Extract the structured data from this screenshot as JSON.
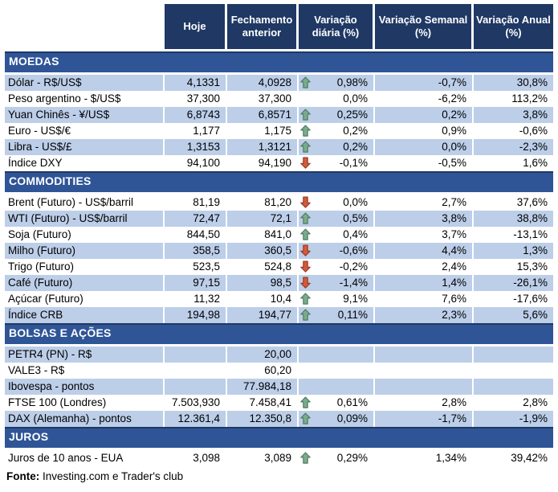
{
  "header": {
    "columns": [
      "Hoje",
      "Fechamento anterior",
      "Variação diária (%)",
      "Variação Semanal (%)",
      "Variação Anual (%)"
    ]
  },
  "sections": [
    {
      "title": "MOEDAS",
      "rows": [
        {
          "label": "Dólar - R$/US$",
          "hoje": "4,1331",
          "fechamento": "4,0928",
          "arrow": "up",
          "var_diaria": "0,98%",
          "var_semanal": "-0,7%",
          "var_anual": "30,8%",
          "shaded": true
        },
        {
          "label": "Peso argentino - $/US$",
          "hoje": "37,300",
          "fechamento": "37,300",
          "arrow": null,
          "var_diaria": "0,0%",
          "var_semanal": "-6,2%",
          "var_anual": "113,2%",
          "shaded": false
        },
        {
          "label": "Yuan Chinês - ¥/US$",
          "hoje": "6,8743",
          "fechamento": "6,8571",
          "arrow": "up",
          "var_diaria": "0,25%",
          "var_semanal": "0,2%",
          "var_anual": "3,8%",
          "shaded": true
        },
        {
          "label": "Euro - US$/€",
          "hoje": "1,177",
          "fechamento": "1,175",
          "arrow": "up",
          "var_diaria": "0,2%",
          "var_semanal": "0,9%",
          "var_anual": "-0,6%",
          "shaded": false
        },
        {
          "label": "Libra - US$/£",
          "hoje": "1,3153",
          "fechamento": "1,3121",
          "arrow": "up",
          "var_diaria": "0,2%",
          "var_semanal": "0,0%",
          "var_anual": "-2,3%",
          "shaded": true
        },
        {
          "label": "Índice DXY",
          "hoje": "94,100",
          "fechamento": "94,190",
          "arrow": "down",
          "var_diaria": "-0,1%",
          "var_semanal": "-0,5%",
          "var_anual": "1,6%",
          "shaded": false
        }
      ]
    },
    {
      "title": "COMMODITIES",
      "rows": [
        {
          "label": "Brent (Futuro) - US$/barril",
          "hoje": "81,19",
          "fechamento": "81,20",
          "arrow": "down",
          "var_diaria": "0,0%",
          "var_semanal": "2,7%",
          "var_anual": "37,6%",
          "shaded": false
        },
        {
          "label": "WTI (Futuro) - US$/barril",
          "hoje": "72,47",
          "fechamento": "72,1",
          "arrow": "up",
          "var_diaria": "0,5%",
          "var_semanal": "3,8%",
          "var_anual": "38,8%",
          "shaded": true
        },
        {
          "label": "Soja (Futuro)",
          "hoje": "844,50",
          "fechamento": "841,0",
          "arrow": "up",
          "var_diaria": "0,4%",
          "var_semanal": "3,7%",
          "var_anual": "-13,1%",
          "shaded": false
        },
        {
          "label": "Milho (Futuro)",
          "hoje": "358,5",
          "fechamento": "360,5",
          "arrow": "down",
          "var_diaria": "-0,6%",
          "var_semanal": "4,4%",
          "var_anual": "1,3%",
          "shaded": true
        },
        {
          "label": "Trigo (Futuro)",
          "hoje": "523,5",
          "fechamento": "524,8",
          "arrow": "down",
          "var_diaria": "-0,2%",
          "var_semanal": "2,4%",
          "var_anual": "15,3%",
          "shaded": false
        },
        {
          "label": "Café (Futuro)",
          "hoje": "97,15",
          "fechamento": "98,5",
          "arrow": "down",
          "var_diaria": "-1,4%",
          "var_semanal": "1,4%",
          "var_anual": "-26,1%",
          "shaded": true
        },
        {
          "label": "Açúcar (Futuro)",
          "hoje": "11,32",
          "fechamento": "10,4",
          "arrow": "up",
          "var_diaria": "9,1%",
          "var_semanal": "7,6%",
          "var_anual": "-17,6%",
          "shaded": false
        },
        {
          "label": "Índice CRB",
          "hoje": "194,98",
          "fechamento": "194,77",
          "arrow": "up",
          "var_diaria": "0,11%",
          "var_semanal": "2,3%",
          "var_anual": "5,6%",
          "shaded": true
        }
      ]
    },
    {
      "title": "BOLSAS E AÇÕES",
      "rows": [
        {
          "label": "PETR4 (PN) - R$",
          "hoje": "",
          "fechamento": "20,00",
          "arrow": null,
          "var_diaria": "",
          "var_semanal": "",
          "var_anual": "",
          "shaded": true
        },
        {
          "label": "VALE3 - R$",
          "hoje": "",
          "fechamento": "60,20",
          "arrow": null,
          "var_diaria": "",
          "var_semanal": "",
          "var_anual": "",
          "shaded": false
        },
        {
          "label": "Ibovespa - pontos",
          "hoje": "",
          "fechamento": "77.984,18",
          "arrow": null,
          "var_diaria": "",
          "var_semanal": "",
          "var_anual": "",
          "shaded": true
        },
        {
          "label": "FTSE 100 (Londres)",
          "hoje": "7.503,930",
          "fechamento": "7.458,41",
          "arrow": "up",
          "var_diaria": "0,61%",
          "var_semanal": "2,8%",
          "var_anual": "2,8%",
          "shaded": false
        },
        {
          "label": "DAX (Alemanha) - pontos",
          "hoje": "12.361,4",
          "fechamento": "12.350,8",
          "arrow": "up",
          "var_diaria": "0,09%",
          "var_semanal": "-1,7%",
          "var_anual": "-1,9%",
          "shaded": true
        }
      ]
    },
    {
      "title": "JUROS",
      "rows": [
        {
          "label": "Juros de 10 anos - EUA",
          "hoje": "3,098",
          "fechamento": "3,089",
          "arrow": "up",
          "var_diaria": "0,29%",
          "var_semanal": "1,34%",
          "var_anual": "39,42%",
          "shaded": false
        }
      ]
    }
  ],
  "footer": {
    "label": "Fonte:",
    "text": " Investing.com e Trader's club"
  },
  "colors": {
    "header_bg": "#1F3864",
    "section_bg": "#2F5597",
    "row_shaded_bg": "#BCCEE8",
    "arrow_up": "#7BAC8D",
    "arrow_up_border": "#4F7C5F",
    "arrow_down": "#D25B3B",
    "arrow_down_border": "#9A3920"
  }
}
